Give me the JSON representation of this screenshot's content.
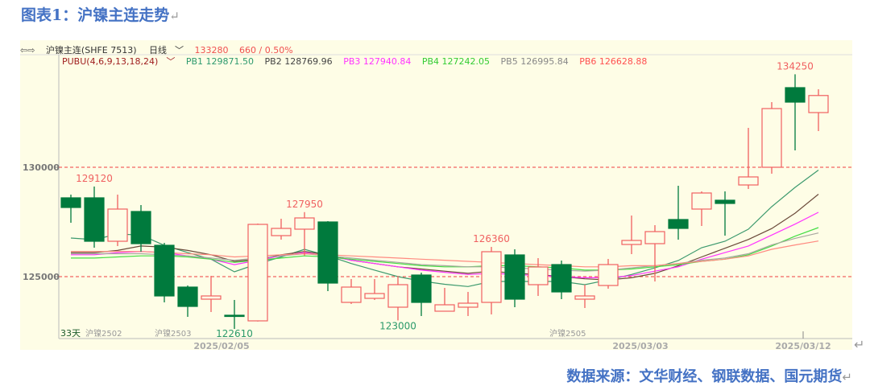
{
  "title": "图表1：沪镍主连走势",
  "source": "数据来源：文华财经、钢联数据、国元期货",
  "header": {
    "symbol": "沪镍主连(SHFE 7513)",
    "period": "日线",
    "last_price": "133280",
    "change": "660 / 0.50%",
    "indicator": "PUBU(4,6,9,13,18,24)",
    "pb_labels": [
      "PB1 129871.50",
      "PB2 128769.96",
      "PB3 127940.84",
      "PB4 127242.05",
      "PB5 126995.84",
      "PB6 126628.88"
    ]
  },
  "bottom": {
    "days": "33天",
    "contracts": [
      "沪镍2502",
      "沪镍2503",
      "沪镍2505"
    ]
  },
  "chart_data": {
    "type": "candlestick",
    "ylim": [
      122000,
      134800
    ],
    "yticks": [
      125000,
      130000
    ],
    "xticks": [
      "2025/02/05",
      "2025/03/03",
      "2025/03/12"
    ],
    "grid": "dashed red lines at y ticks",
    "colors": {
      "up": "#f06060",
      "down": "#007a3d",
      "PB1": "#3d9a6e",
      "PB2": "#6b4a3a",
      "PB3": "#ff33ff",
      "PB4": "#44dd44",
      "PB5": "#a8a8a0",
      "PB6": "#ff8a80"
    },
    "candles": [
      {
        "o": 128603,
        "h": 128750,
        "l": 127464,
        "c": 128162
      },
      {
        "o": 128603,
        "h": 129120,
        "l": 126324,
        "c": 126618
      },
      {
        "o": 126618,
        "h": 128750,
        "l": 126397,
        "c": 128089
      },
      {
        "o": 127978,
        "h": 128272,
        "l": 126140,
        "c": 126508
      },
      {
        "o": 126434,
        "h": 126545,
        "l": 123824,
        "c": 124118
      },
      {
        "o": 124523,
        "h": 124596,
        "l": 123163,
        "c": 123640
      },
      {
        "o": 123971,
        "h": 125037,
        "l": 123383,
        "c": 124118
      },
      {
        "o": 123236,
        "h": 123935,
        "l": 122610,
        "c": 123200
      },
      {
        "o": 122979,
        "h": 127426,
        "l": 122950,
        "c": 127390
      },
      {
        "o": 126875,
        "h": 127647,
        "l": 126692,
        "c": 127206
      },
      {
        "o": 127170,
        "h": 127950,
        "l": 125956,
        "c": 127684
      },
      {
        "o": 127500,
        "h": 127537,
        "l": 124339,
        "c": 124706
      },
      {
        "o": 123824,
        "h": 124890,
        "l": 123751,
        "c": 124523
      },
      {
        "o": 124008,
        "h": 124890,
        "l": 123935,
        "c": 124228
      },
      {
        "o": 123604,
        "h": 125037,
        "l": 123000,
        "c": 124633
      },
      {
        "o": 125074,
        "h": 125184,
        "l": 123200,
        "c": 123824
      },
      {
        "o": 123420,
        "h": 124486,
        "l": 123420,
        "c": 123714
      },
      {
        "o": 123604,
        "h": 124302,
        "l": 123200,
        "c": 123787
      },
      {
        "o": 123824,
        "h": 126360,
        "l": 123273,
        "c": 126140
      },
      {
        "o": 125993,
        "h": 126250,
        "l": 123604,
        "c": 123971
      },
      {
        "o": 124633,
        "h": 125846,
        "l": 124118,
        "c": 125442
      },
      {
        "o": 125552,
        "h": 125736,
        "l": 123971,
        "c": 124302
      },
      {
        "o": 123971,
        "h": 124633,
        "l": 123567,
        "c": 124118
      },
      {
        "o": 124596,
        "h": 125809,
        "l": 124449,
        "c": 125552
      },
      {
        "o": 126471,
        "h": 127794,
        "l": 126030,
        "c": 126655
      },
      {
        "o": 126508,
        "h": 127353,
        "l": 124780,
        "c": 127059
      },
      {
        "o": 127611,
        "h": 129155,
        "l": 126692,
        "c": 127206
      },
      {
        "o": 128089,
        "h": 128897,
        "l": 127316,
        "c": 128824
      },
      {
        "o": 128493,
        "h": 128897,
        "l": 126875,
        "c": 128346
      },
      {
        "o": 129191,
        "h": 131801,
        "l": 129007,
        "c": 129559
      },
      {
        "o": 130000,
        "h": 132978,
        "l": 129706,
        "c": 132683
      },
      {
        "o": 133639,
        "h": 134250,
        "l": 130772,
        "c": 132978
      },
      {
        "o": 132500,
        "h": 133566,
        "l": 131654,
        "c": 133280
      }
    ],
    "series": [
      {
        "name": "PB1",
        "values": [
          126765,
          126692,
          126949,
          126900,
          126434,
          126100,
          125800,
          125221,
          125589,
          125900,
          126250,
          125956,
          125600,
          125300,
          125000,
          124800,
          124650,
          124550,
          124780,
          124780,
          124780,
          124780,
          124633,
          124850,
          125100,
          125400,
          125736,
          126324,
          126618,
          127169,
          128199,
          129081,
          129871.5
        ]
      },
      {
        "name": "PB2",
        "values": [
          126100,
          126100,
          126200,
          126400,
          126350,
          126200,
          126000,
          125700,
          125800,
          126000,
          126150,
          126000,
          125750,
          125600,
          125450,
          125350,
          125250,
          125150,
          125250,
          125150,
          125100,
          125000,
          124900,
          124850,
          124950,
          125150,
          125500,
          125900,
          126300,
          126700,
          127200,
          127900,
          128769.96
        ]
      },
      {
        "name": "PB3",
        "values": [
          126000,
          126000,
          126100,
          126150,
          126100,
          125950,
          125800,
          125550,
          125750,
          125950,
          126100,
          125950,
          125750,
          125600,
          125450,
          125300,
          125200,
          125100,
          125150,
          125100,
          125050,
          125000,
          124950,
          124950,
          125050,
          125250,
          125450,
          125800,
          126100,
          126400,
          126900,
          127400,
          127940.84
        ]
      },
      {
        "name": "PB4",
        "values": [
          125850,
          125850,
          125900,
          125950,
          125950,
          125900,
          125800,
          125650,
          125750,
          125850,
          125950,
          125900,
          125800,
          125700,
          125600,
          125500,
          125450,
          125450,
          125500,
          125500,
          125450,
          125400,
          125300,
          125300,
          125350,
          125450,
          125550,
          125700,
          125800,
          126000,
          126400,
          126850,
          127242.05
        ]
      },
      {
        "name": "PB5",
        "values": [
          126050,
          126050,
          126050,
          126050,
          126000,
          125950,
          125850,
          125750,
          125850,
          125950,
          126050,
          125950,
          125850,
          125750,
          125650,
          125550,
          125500,
          125450,
          125450,
          125400,
          125350,
          125300,
          125250,
          125300,
          125400,
          125500,
          125600,
          125750,
          125850,
          126050,
          126450,
          126750,
          126995.84
        ]
      },
      {
        "name": "PB6",
        "values": [
          126150,
          126150,
          126150,
          126150,
          126100,
          126050,
          126000,
          125900,
          125950,
          126000,
          126050,
          126000,
          125950,
          125900,
          125850,
          125800,
          125750,
          125700,
          125650,
          125600,
          125550,
          125500,
          125450,
          125450,
          125500,
          125500,
          125600,
          125700,
          125800,
          125950,
          126250,
          126450,
          126628.88
        ]
      }
    ],
    "annotations": [
      {
        "text": "129120",
        "candle": 2,
        "pos": "above"
      },
      {
        "text": "127950",
        "candle": 11,
        "pos": "above"
      },
      {
        "text": "126360",
        "candle": 19,
        "pos": "above"
      },
      {
        "text": "134250",
        "candle": 32,
        "pos": "above"
      },
      {
        "text": "122610",
        "candle": 8,
        "pos": "below"
      },
      {
        "text": "123000",
        "candle": 15,
        "pos": "below"
      }
    ]
  }
}
